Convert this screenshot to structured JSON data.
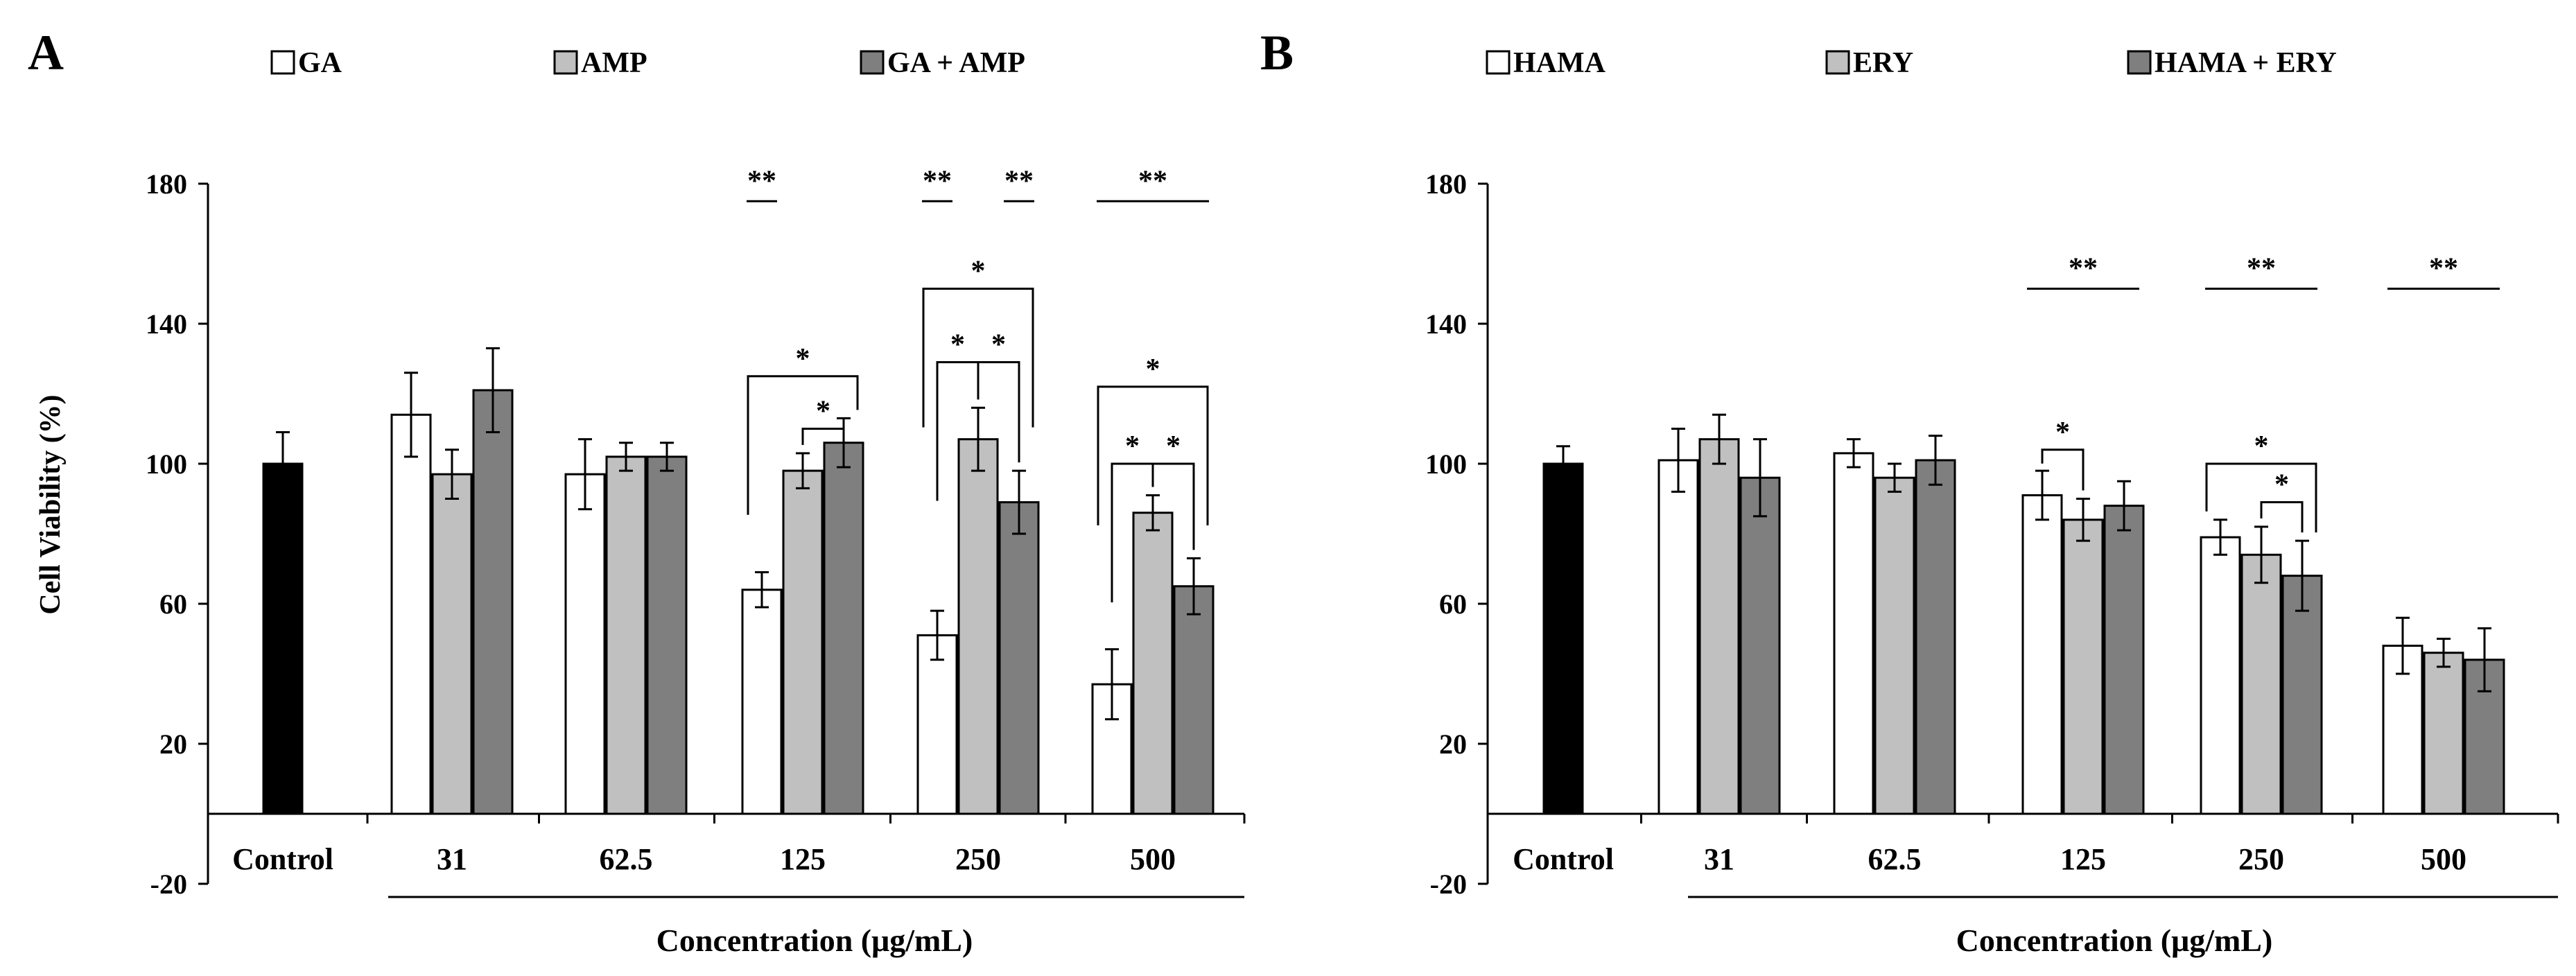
{
  "chart_data": [
    {
      "panel_label": "A",
      "type": "bar",
      "ylabel": "Cell Viability (%)",
      "xlabel": "Concentration  (μg/mL)",
      "ylim": [
        -20,
        180
      ],
      "yticks": [
        -20,
        20,
        60,
        100,
        140,
        180
      ],
      "grid": false,
      "legend_position": "top",
      "control": {
        "label": "Control",
        "value": 100,
        "error": 9,
        "color": "#000000"
      },
      "categories": [
        "31",
        "62.5",
        "125",
        "250",
        "500"
      ],
      "series": [
        {
          "name": "GA",
          "color": "#ffffff",
          "values": [
            114,
            97,
            64,
            51,
            37
          ],
          "errors": [
            12,
            10,
            5,
            7,
            10
          ]
        },
        {
          "name": "AMP",
          "color": "#c0c0c0",
          "values": [
            97,
            102,
            98,
            107,
            86
          ],
          "errors": [
            7,
            4,
            5,
            9,
            5
          ]
        },
        {
          "name": "GA + AMP",
          "color": "#7f7f7f",
          "values": [
            121,
            102,
            106,
            89,
            65
          ],
          "errors": [
            12,
            4,
            7,
            9,
            8
          ]
        }
      ],
      "significance": [
        {
          "category": "125",
          "type": "line",
          "from": 0,
          "to": 0,
          "text": "**",
          "level": 175
        },
        {
          "category": "125",
          "type": "bracket",
          "from": 0,
          "to": 2,
          "text": "*",
          "level": 125
        },
        {
          "category": "125",
          "type": "bracket",
          "from": 1,
          "to": 2,
          "text": "*",
          "level": 110
        },
        {
          "category": "250",
          "type": "line",
          "from": 0,
          "to": 0,
          "text": "**",
          "level": 175
        },
        {
          "category": "250",
          "type": "line",
          "from": 2,
          "to": 2,
          "text": "**",
          "level": 175
        },
        {
          "category": "250",
          "type": "bracket",
          "from": 0,
          "to": 2,
          "text": "*",
          "level": 150
        },
        {
          "category": "250",
          "type": "bracket",
          "from": 0,
          "to": 1,
          "text": "*",
          "level": 129
        },
        {
          "category": "250",
          "type": "bracket",
          "from": 1,
          "to": 2,
          "text": "*",
          "level": 129
        },
        {
          "category": "500",
          "type": "line",
          "from": 0,
          "to": 2,
          "text": "**",
          "level": 175
        },
        {
          "category": "500",
          "type": "bracket",
          "from": 0,
          "to": 2,
          "text": "*",
          "level": 122
        },
        {
          "category": "500",
          "type": "bracket",
          "from": 0,
          "to": 1,
          "text": "*",
          "level": 100
        },
        {
          "category": "500",
          "type": "bracket",
          "from": 1,
          "to": 2,
          "text": "*",
          "level": 100
        }
      ]
    },
    {
      "panel_label": "B",
      "type": "bar",
      "ylabel": "",
      "xlabel": "Concentration  (μg/mL)",
      "ylim": [
        -20,
        180
      ],
      "yticks": [
        -20,
        20,
        60,
        100,
        140,
        180
      ],
      "grid": false,
      "legend_position": "top",
      "control": {
        "label": "Control",
        "value": 100,
        "error": 5,
        "color": "#000000"
      },
      "categories": [
        "31",
        "62.5",
        "125",
        "250",
        "500"
      ],
      "series": [
        {
          "name": "HAMA",
          "color": "#ffffff",
          "values": [
            101,
            103,
            91,
            79,
            48
          ],
          "errors": [
            9,
            4,
            7,
            5,
            8
          ]
        },
        {
          "name": "ERY",
          "color": "#c0c0c0",
          "values": [
            107,
            96,
            84,
            74,
            46
          ],
          "errors": [
            7,
            4,
            6,
            8,
            4
          ]
        },
        {
          "name": "HAMA + ERY",
          "color": "#7f7f7f",
          "values": [
            96,
            101,
            88,
            68,
            44
          ],
          "errors": [
            11,
            7,
            7,
            10,
            9
          ]
        }
      ],
      "significance": [
        {
          "category": "125",
          "type": "line",
          "from": 0,
          "to": 2,
          "text": "**",
          "level": 150
        },
        {
          "category": "250",
          "type": "line",
          "from": 0,
          "to": 2,
          "text": "**",
          "level": 150
        },
        {
          "category": "500",
          "type": "line",
          "from": 0,
          "to": 2,
          "text": "**",
          "level": 150
        },
        {
          "category": "125",
          "type": "bracket",
          "from": 0,
          "to": 1,
          "text": "*",
          "level": 104
        },
        {
          "category": "250",
          "type": "bracket",
          "from": 0,
          "to": 2,
          "text": "*",
          "level": 100
        },
        {
          "category": "250",
          "type": "bracket",
          "from": 1,
          "to": 2,
          "text": "*",
          "level": 89
        }
      ]
    }
  ]
}
